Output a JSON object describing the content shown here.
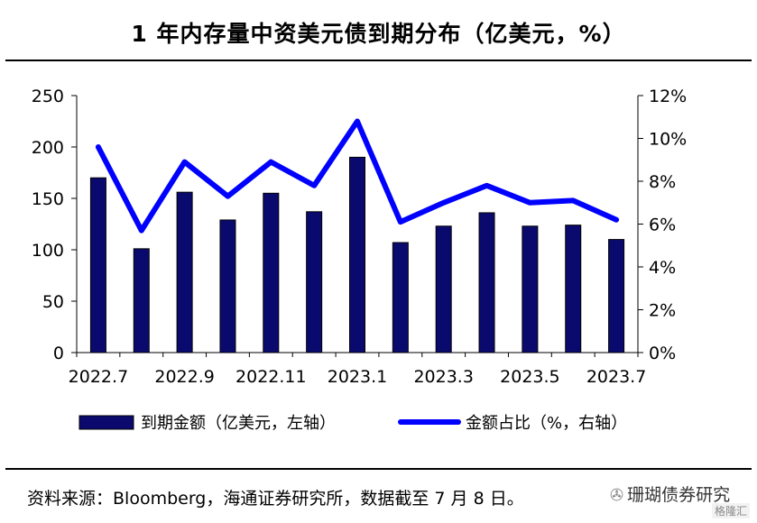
{
  "title": "1 年内存量中资美元债到期分布（亿美元，%）",
  "source": "资料来源：Bloomberg，海通证券研究所，数据截至 7 月 8 日。",
  "watermark": {
    "text": "珊瑚债券研究",
    "sub": "格隆汇",
    "icon": "wechat-icon"
  },
  "colors": {
    "bar": "#0a0a6e",
    "line": "#0000ff",
    "axis": "#000000"
  },
  "chart_data": {
    "type": "bar",
    "categories": [
      "2022.7",
      "2022.8",
      "2022.9",
      "2022.10",
      "2022.11",
      "2022.12",
      "2023.1",
      "2023.2",
      "2023.3",
      "2023.4",
      "2023.5",
      "2023.6",
      "2023.7"
    ],
    "x_tick_labels": [
      "2022.7",
      "2022.9",
      "2022.11",
      "2023.1",
      "2023.3",
      "2023.5",
      "2023.7"
    ],
    "series": [
      {
        "name": "到期金额（亿美元，左轴）",
        "type": "bar",
        "axis": "left",
        "values": [
          170,
          101,
          156,
          129,
          155,
          137,
          190,
          107,
          123,
          136,
          123,
          124,
          110
        ]
      },
      {
        "name": "金额占比（%，右轴）",
        "type": "line",
        "axis": "right",
        "values": [
          9.6,
          5.7,
          8.9,
          7.3,
          8.9,
          7.8,
          10.8,
          6.1,
          7.0,
          7.8,
          7.0,
          7.1,
          6.2
        ]
      }
    ],
    "y_left": {
      "lim": [
        0,
        250
      ],
      "ticks": [
        "0",
        "50",
        "100",
        "150",
        "200",
        "250"
      ]
    },
    "y_right": {
      "lim": [
        0,
        12
      ],
      "ticks": [
        "0%",
        "2%",
        "4%",
        "6%",
        "8%",
        "10%",
        "12%"
      ]
    },
    "legend": {
      "placement": "bottom"
    },
    "grid": false
  }
}
